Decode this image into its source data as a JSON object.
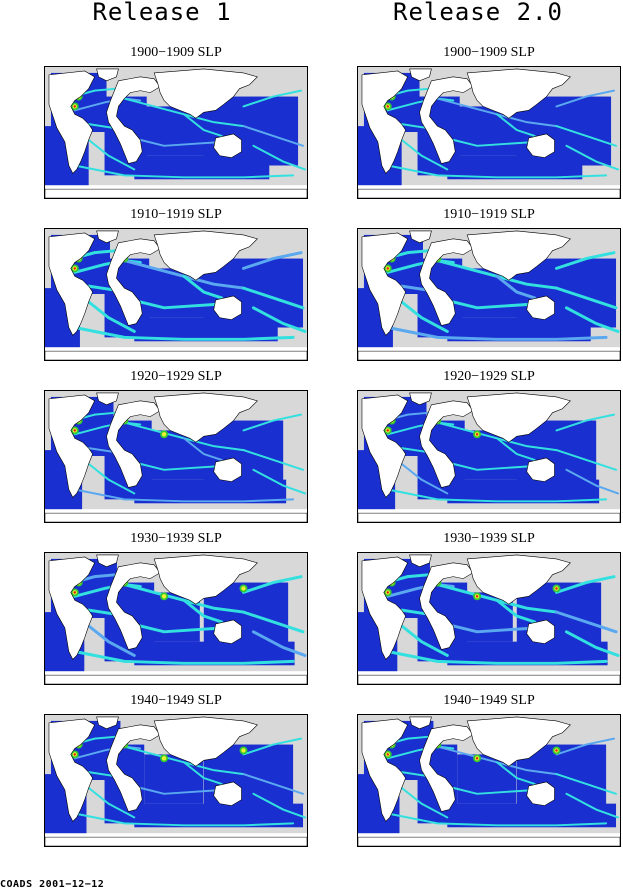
{
  "columns": [
    {
      "title": "Release 1",
      "panels": [
        "1900−1909 SLP",
        "1910−1919 SLP",
        "1920−1929 SLP",
        "1930−1939 SLP",
        "1940−1949 SLP"
      ]
    },
    {
      "title": "Release 2.0",
      "panels": [
        "1900−1909 SLP",
        "1910−1919 SLP",
        "1920−1929 SLP",
        "1930−1939 SLP",
        "1940−1949 SLP"
      ]
    }
  ],
  "footer": "COADS 2001−12−12",
  "colors": {
    "sparse": "#d8d8d8",
    "ocean_low": "#1a2fd0",
    "ocean_mid": "#5aa8f0",
    "cyan": "#33e0e0",
    "green": "#33c833",
    "yellow": "#f0f030",
    "red": "#e01818",
    "land": "#ffffff"
  }
}
